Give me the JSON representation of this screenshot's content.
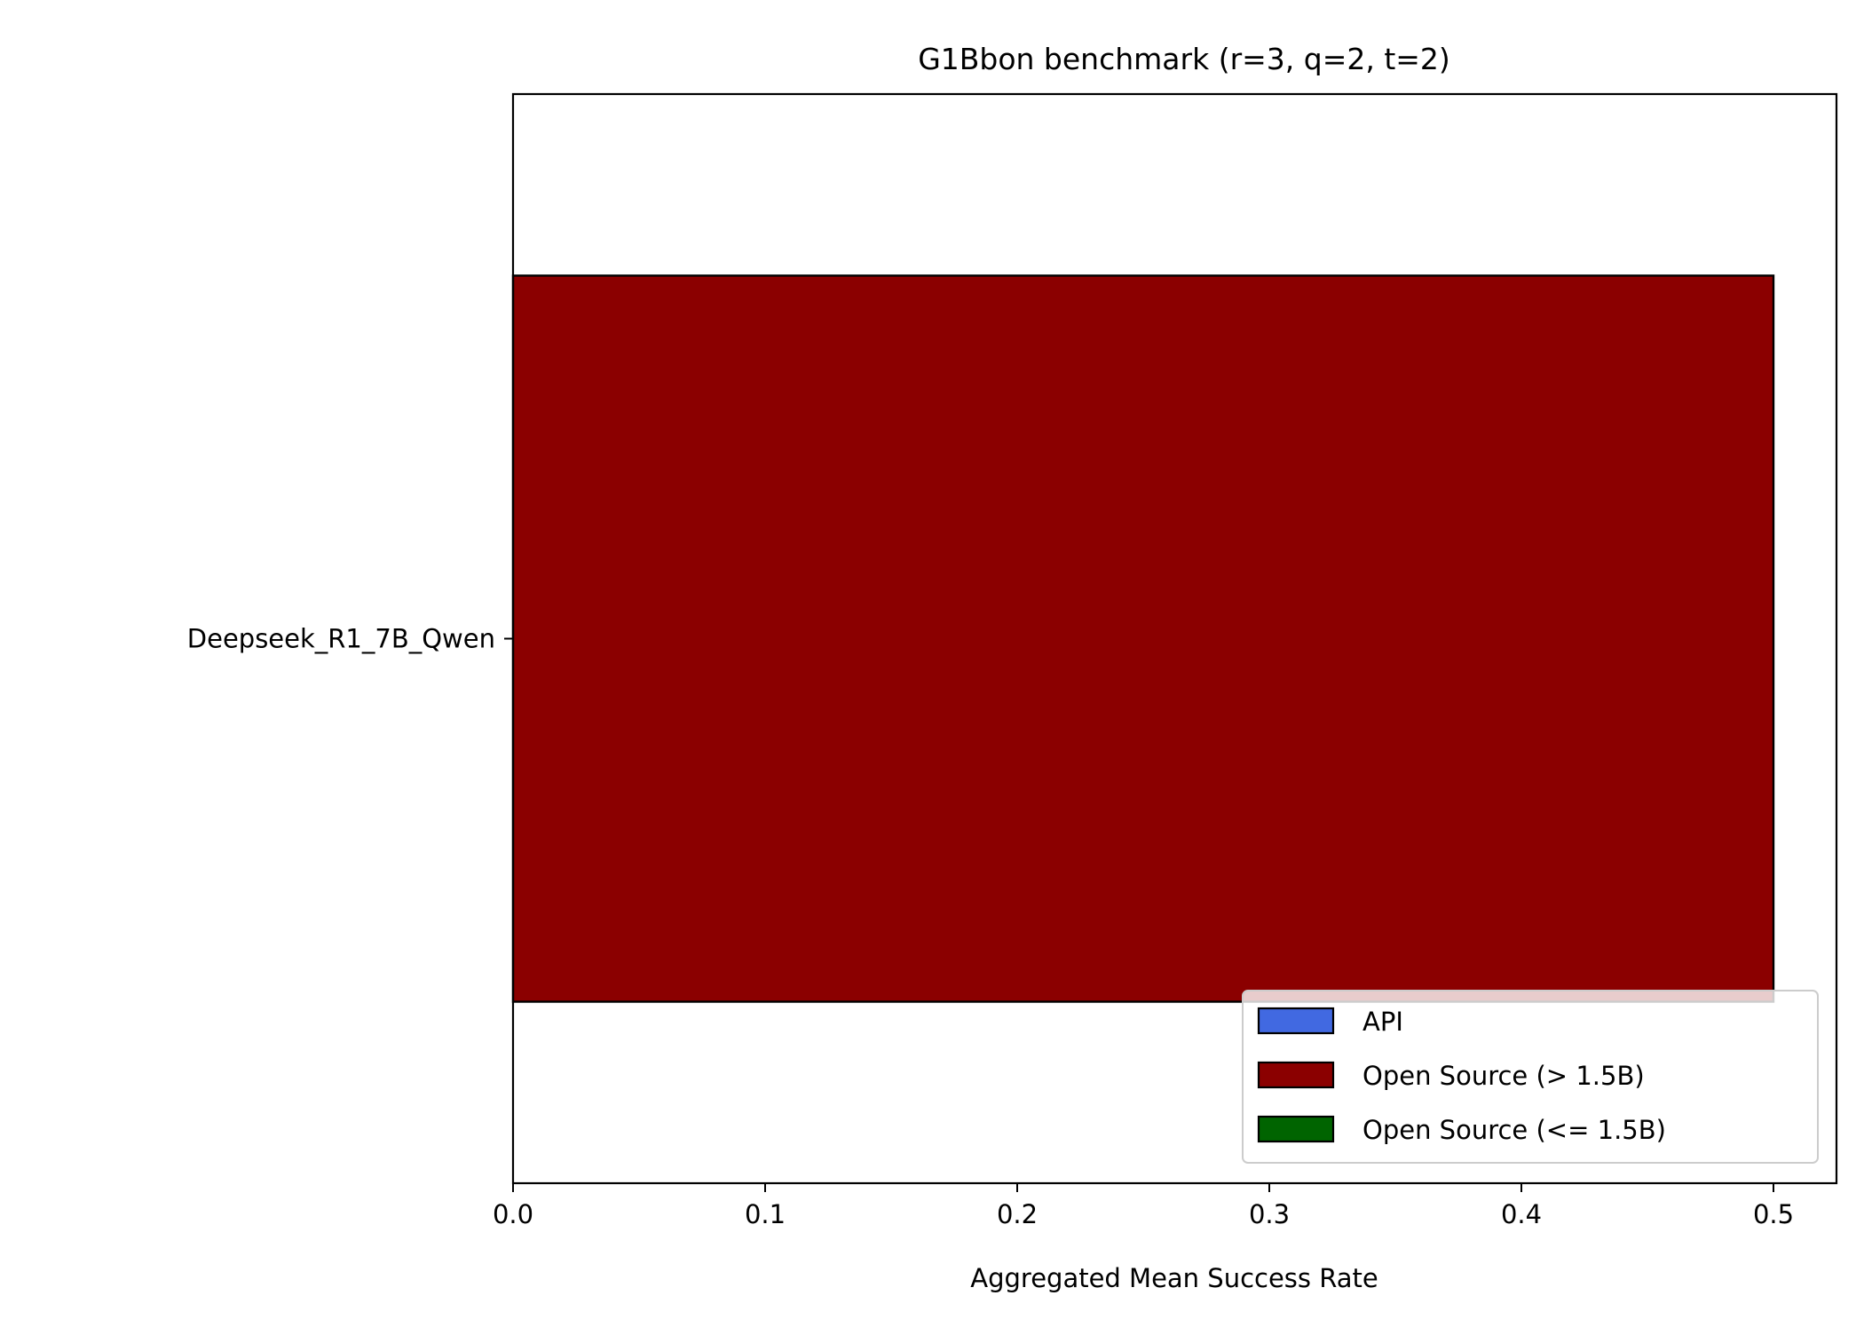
{
  "chart_data": {
    "type": "bar",
    "orientation": "horizontal",
    "title": "G1Bbon benchmark (r=3, q=2, t=2)",
    "xlabel": "Aggregated Mean Success Rate",
    "ylabel": "",
    "xlim": [
      0,
      0.525
    ],
    "x_ticks": [
      "0.0",
      "0.1",
      "0.2",
      "0.3",
      "0.4",
      "0.5"
    ],
    "categories": [
      "Deepseek_R1_7B_Qwen"
    ],
    "values": [
      0.5
    ],
    "bar_colors": [
      "#8b0000"
    ],
    "grid": false,
    "legend": {
      "placement": "lower-right",
      "entries": [
        {
          "label": "API",
          "color": "#4169e1"
        },
        {
          "label": "Open Source (> 1.5B)",
          "color": "#8b0000"
        },
        {
          "label": "Open Source (<= 1.5B)",
          "color": "#006400"
        }
      ]
    }
  }
}
